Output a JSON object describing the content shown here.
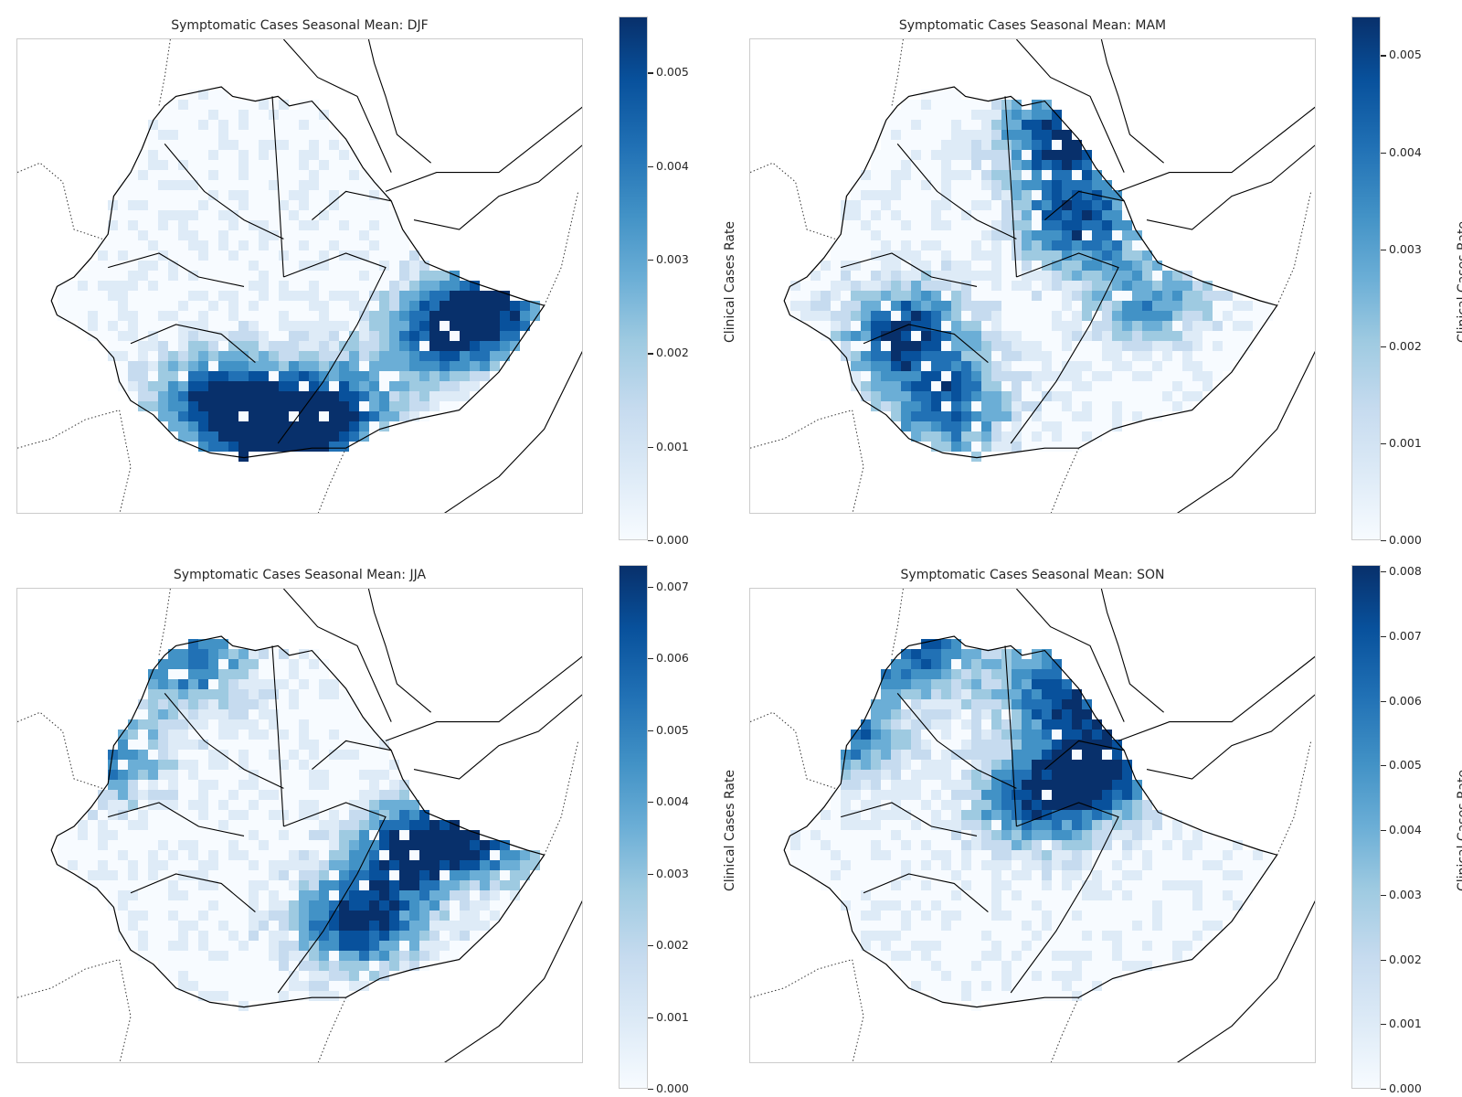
{
  "figure": {
    "panels": [
      {
        "id": "djf",
        "title": "Symptomatic Cases Seasonal Mean: DJF",
        "colorbar_label": "Clinical Cases Rate",
        "colorbar_ticks": [
          "0.000",
          "0.001",
          "0.002",
          "0.003",
          "0.004",
          "0.005"
        ],
        "colorbar_max": 0.0056,
        "hotspots": [
          [
            0.75,
            0.62,
            0.9
          ],
          [
            0.55,
            0.78,
            1.0
          ],
          [
            0.35,
            0.75,
            0.9
          ],
          [
            0.85,
            0.55,
            0.8
          ],
          [
            0.45,
            0.85,
            1.0
          ]
        ]
      },
      {
        "id": "mam",
        "title": "Symptomatic Cases Seasonal Mean: MAM",
        "colorbar_label": "Clinical Cases Rate",
        "colorbar_ticks": [
          "0.000",
          "0.001",
          "0.002",
          "0.003",
          "0.004",
          "0.005"
        ],
        "colorbar_max": 0.0054,
        "hotspots": [
          [
            0.55,
            0.2,
            1.0
          ],
          [
            0.58,
            0.38,
            0.9
          ],
          [
            0.28,
            0.62,
            1.0
          ],
          [
            0.35,
            0.78,
            0.8
          ],
          [
            0.7,
            0.55,
            0.6
          ]
        ]
      },
      {
        "id": "jja",
        "title": "Symptomatic Cases Seasonal Mean: JJA",
        "colorbar_label": "Clinical Cases Rate",
        "colorbar_ticks": [
          "0.000",
          "0.001",
          "0.002",
          "0.003",
          "0.004",
          "0.005",
          "0.006",
          "0.007"
        ],
        "colorbar_max": 0.0073,
        "hotspots": [
          [
            0.7,
            0.55,
            1.0
          ],
          [
            0.6,
            0.7,
            1.0
          ],
          [
            0.15,
            0.35,
            0.8
          ],
          [
            0.3,
            0.15,
            0.8
          ],
          [
            0.85,
            0.5,
            0.9
          ]
        ]
      },
      {
        "id": "son",
        "title": "Symptomatic Cases Seasonal Mean: SON",
        "colorbar_label": "Clinical Cases Rate",
        "colorbar_ticks": [
          "0.000",
          "0.001",
          "0.002",
          "0.003",
          "0.004",
          "0.005",
          "0.006",
          "0.007",
          "0.008"
        ],
        "colorbar_max": 0.0081,
        "hotspots": [
          [
            0.62,
            0.38,
            1.0
          ],
          [
            0.55,
            0.22,
            0.9
          ],
          [
            0.15,
            0.3,
            0.9
          ],
          [
            0.3,
            0.12,
            0.9
          ],
          [
            0.5,
            0.45,
            0.8
          ]
        ]
      }
    ],
    "colormap": [
      "#f7fbff",
      "#deebf7",
      "#c6dbef",
      "#9ecae1",
      "#6baed6",
      "#4292c6",
      "#2171b5",
      "#08519c",
      "#08306b"
    ]
  }
}
